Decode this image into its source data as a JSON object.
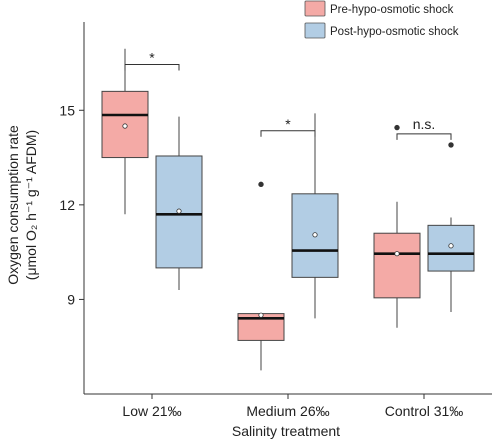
{
  "chart_data": {
    "type": "boxplot",
    "xlabel": "Salinity treatment",
    "ylabel_line1": "Oxygen consumption rate",
    "ylabel_line2": "(μmol O₂ h⁻¹ g⁻¹ AFDM)",
    "categories": [
      "Low 21‰",
      "Medium 26‰",
      "Control 31‰"
    ],
    "ylim": [
      6.0,
      17.8
    ],
    "yticks": [
      9,
      12,
      15
    ],
    "ytick_labels": [
      "9",
      "12",
      "15"
    ],
    "grid": false,
    "legend_position": "top-right",
    "series": [
      {
        "name": "Pre-hypo-osmotic shock",
        "color": "#f4aaa6",
        "boxes": [
          {
            "whisker_low": 11.7,
            "q1": 13.5,
            "median": 14.85,
            "q3": 15.6,
            "whisker_high": 16.95,
            "mean": 14.5,
            "outliers": []
          },
          {
            "whisker_low": 6.75,
            "q1": 7.7,
            "median": 8.4,
            "q3": 8.55,
            "whisker_high": 8.55,
            "mean": 8.5,
            "outliers": [
              12.65
            ]
          },
          {
            "whisker_low": 8.1,
            "q1": 9.05,
            "median": 10.45,
            "q3": 11.1,
            "whisker_high": 12.1,
            "mean": 10.45,
            "outliers": [
              14.45
            ]
          }
        ]
      },
      {
        "name": "Post-hypo-osmotic shock",
        "color": "#b2cde4",
        "boxes": [
          {
            "whisker_low": 9.3,
            "q1": 10.0,
            "median": 11.7,
            "q3": 13.55,
            "whisker_high": 14.8,
            "mean": 11.8,
            "outliers": []
          },
          {
            "whisker_low": 8.4,
            "q1": 9.7,
            "median": 10.55,
            "q3": 12.35,
            "whisker_high": 14.9,
            "mean": 11.05,
            "outliers": []
          },
          {
            "whisker_low": 8.6,
            "q1": 9.9,
            "median": 10.45,
            "q3": 11.35,
            "whisker_high": 11.6,
            "mean": 10.7,
            "outliers": [
              13.9
            ]
          }
        ]
      }
    ],
    "annotations": [
      {
        "category_index": 0,
        "label": "*",
        "y": 16.45
      },
      {
        "category_index": 1,
        "label": "*",
        "y": 14.35
      },
      {
        "category_index": 2,
        "label": "n.s.",
        "y": 14.25
      }
    ]
  }
}
